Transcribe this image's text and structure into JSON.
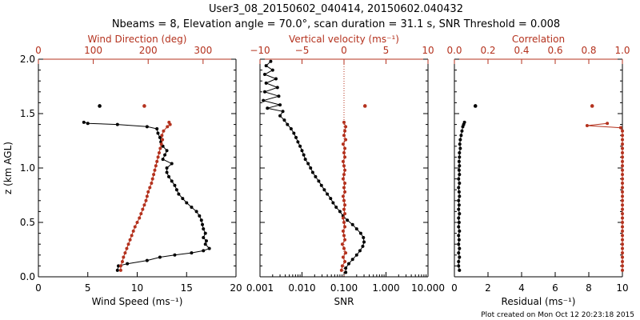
{
  "title_line1": "User3_08_20150602_040414, 20150602.040432",
  "title_line2": "Nbeams = 8, Elevation angle = 70.0°, scan duration = 31.1 s, SNR Threshold = 0.008",
  "footer": "Plot created on Mon Oct 12 20:23:18 2015",
  "colors": {
    "primary": "#000000",
    "secondary": "#b4321e"
  },
  "chart_data": [
    {
      "type": "line",
      "ylabel": "z (km AGL)",
      "ylim": [
        0,
        2
      ],
      "yticks": [
        "0.0",
        "0.5",
        "1.0",
        "1.5",
        "2.0"
      ],
      "bottom_axis": {
        "label": "Wind Speed (ms⁻¹)",
        "range": [
          0,
          20
        ],
        "ticks": [
          "0",
          "5",
          "10",
          "15",
          "20"
        ]
      },
      "top_axis": {
        "label": "Wind Direction (deg)",
        "range": [
          0,
          360
        ],
        "ticks": [
          "0",
          "100",
          "200",
          "300"
        ]
      },
      "series": [
        {
          "color": "#000000",
          "axis": "bottom",
          "points": [
            [
              8.0,
              0.06
            ],
            [
              8.1,
              0.1
            ],
            [
              9.0,
              0.12
            ],
            [
              11.0,
              0.15
            ],
            [
              12.3,
              0.18
            ],
            [
              13.8,
              0.2
            ],
            [
              15.5,
              0.22
            ],
            [
              16.7,
              0.24
            ],
            [
              17.3,
              0.26
            ],
            [
              16.9,
              0.3
            ],
            [
              17.0,
              0.33
            ],
            [
              16.7,
              0.36
            ],
            [
              16.9,
              0.4
            ],
            [
              16.7,
              0.44
            ],
            [
              16.6,
              0.48
            ],
            [
              16.5,
              0.52
            ],
            [
              16.3,
              0.56
            ],
            [
              16.0,
              0.6
            ],
            [
              15.5,
              0.64
            ],
            [
              15.0,
              0.68
            ],
            [
              14.6,
              0.72
            ],
            [
              14.2,
              0.76
            ],
            [
              14.0,
              0.8
            ],
            [
              13.8,
              0.84
            ],
            [
              13.5,
              0.88
            ],
            [
              13.2,
              0.92
            ],
            [
              13.0,
              0.96
            ],
            [
              13.0,
              1.0
            ],
            [
              13.5,
              1.04
            ],
            [
              12.6,
              1.08
            ],
            [
              12.8,
              1.12
            ],
            [
              13.0,
              1.16
            ],
            [
              12.6,
              1.2
            ],
            [
              12.4,
              1.24
            ],
            [
              12.3,
              1.28
            ],
            [
              12.1,
              1.32
            ],
            [
              12.0,
              1.36
            ],
            [
              11.0,
              1.38
            ],
            [
              8.0,
              1.4
            ],
            [
              5.0,
              1.41
            ],
            [
              4.6,
              1.42
            ]
          ],
          "isolated": [
            [
              6.2,
              1.57
            ]
          ]
        },
        {
          "color": "#b4321e",
          "axis": "top",
          "points": [
            [
              150,
              0.06
            ],
            [
              150,
              0.1
            ],
            [
              153,
              0.14
            ],
            [
              155,
              0.18
            ],
            [
              158,
              0.22
            ],
            [
              161,
              0.26
            ],
            [
              164,
              0.3
            ],
            [
              167,
              0.34
            ],
            [
              170,
              0.38
            ],
            [
              173,
              0.42
            ],
            [
              176,
              0.46
            ],
            [
              180,
              0.5
            ],
            [
              184,
              0.54
            ],
            [
              187,
              0.58
            ],
            [
              190,
              0.62
            ],
            [
              193,
              0.66
            ],
            [
              196,
              0.7
            ],
            [
              198,
              0.74
            ],
            [
              200,
              0.78
            ],
            [
              203,
              0.82
            ],
            [
              206,
              0.86
            ],
            [
              208,
              0.9
            ],
            [
              210,
              0.94
            ],
            [
              212,
              0.98
            ],
            [
              214,
              1.02
            ],
            [
              216,
              1.06
            ],
            [
              218,
              1.1
            ],
            [
              220,
              1.14
            ],
            [
              222,
              1.18
            ],
            [
              224,
              1.22
            ],
            [
              226,
              1.26
            ],
            [
              225,
              1.3
            ],
            [
              228,
              1.34
            ],
            [
              235,
              1.38
            ],
            [
              240,
              1.4
            ],
            [
              238,
              1.42
            ]
          ],
          "isolated": [
            [
              193,
              1.57
            ]
          ]
        }
      ]
    },
    {
      "type": "line",
      "ylim": [
        0,
        2
      ],
      "bottom_axis": {
        "label": "SNR",
        "scale": "log",
        "range": [
          0.001,
          10
        ],
        "ticks": [
          "0.001",
          "0.010",
          "0.100",
          "1.000",
          "10.000"
        ]
      },
      "top_axis": {
        "label": "Vertical velocity (ms⁻¹)",
        "range": [
          -10,
          10
        ],
        "ticks": [
          "−10",
          "−5",
          "0",
          "5",
          "10"
        ]
      },
      "reference_line": {
        "axis": "top",
        "value": 0,
        "style": "dotted"
      },
      "series": [
        {
          "color": "#000000",
          "axis": "bottom",
          "points": [
            [
              0.11,
              0.04
            ],
            [
              0.11,
              0.08
            ],
            [
              0.13,
              0.12
            ],
            [
              0.16,
              0.16
            ],
            [
              0.2,
              0.2
            ],
            [
              0.24,
              0.24
            ],
            [
              0.28,
              0.28
            ],
            [
              0.3,
              0.32
            ],
            [
              0.29,
              0.36
            ],
            [
              0.25,
              0.4
            ],
            [
              0.2,
              0.44
            ],
            [
              0.16,
              0.48
            ],
            [
              0.12,
              0.52
            ],
            [
              0.095,
              0.56
            ],
            [
              0.08,
              0.6
            ],
            [
              0.065,
              0.64
            ],
            [
              0.055,
              0.68
            ],
            [
              0.048,
              0.72
            ],
            [
              0.04,
              0.76
            ],
            [
              0.034,
              0.8
            ],
            [
              0.029,
              0.84
            ],
            [
              0.025,
              0.88
            ],
            [
              0.021,
              0.92
            ],
            [
              0.018,
              0.96
            ],
            [
              0.016,
              1.0
            ],
            [
              0.014,
              1.04
            ],
            [
              0.012,
              1.08
            ],
            [
              0.011,
              1.12
            ],
            [
              0.01,
              1.16
            ],
            [
              0.009,
              1.2
            ],
            [
              0.008,
              1.24
            ],
            [
              0.0072,
              1.28
            ],
            [
              0.0064,
              1.32
            ],
            [
              0.0055,
              1.36
            ],
            [
              0.0045,
              1.4
            ],
            [
              0.0038,
              1.44
            ],
            [
              0.003,
              1.48
            ],
            [
              0.0035,
              1.52
            ],
            [
              0.0015,
              1.55
            ],
            [
              0.003,
              1.58
            ],
            [
              0.0012,
              1.62
            ],
            [
              0.0028,
              1.66
            ],
            [
              0.0013,
              1.7
            ],
            [
              0.0026,
              1.74
            ],
            [
              0.0014,
              1.78
            ],
            [
              0.0024,
              1.82
            ],
            [
              0.0013,
              1.86
            ],
            [
              0.002,
              1.9
            ],
            [
              0.0014,
              1.94
            ],
            [
              0.0018,
              1.98
            ]
          ]
        },
        {
          "color": "#b4321e",
          "axis": "top",
          "points": [
            [
              -0.3,
              0.06
            ],
            [
              -0.2,
              0.1
            ],
            [
              0.1,
              0.14
            ],
            [
              -0.1,
              0.18
            ],
            [
              0.2,
              0.22
            ],
            [
              0.0,
              0.26
            ],
            [
              -0.2,
              0.3
            ],
            [
              0.1,
              0.34
            ],
            [
              0.0,
              0.38
            ],
            [
              -0.1,
              0.42
            ],
            [
              0.1,
              0.46
            ],
            [
              0.0,
              0.5
            ],
            [
              -0.1,
              0.54
            ],
            [
              0.1,
              0.58
            ],
            [
              0.0,
              0.62
            ],
            [
              0.1,
              0.66
            ],
            [
              0.0,
              0.7
            ],
            [
              -0.1,
              0.74
            ],
            [
              0.1,
              0.78
            ],
            [
              0.0,
              0.82
            ],
            [
              0.1,
              0.86
            ],
            [
              -0.1,
              0.9
            ],
            [
              0.0,
              0.94
            ],
            [
              0.1,
              0.98
            ],
            [
              0.0,
              1.02
            ],
            [
              -0.1,
              1.06
            ],
            [
              0.1,
              1.1
            ],
            [
              0.0,
              1.14
            ],
            [
              0.1,
              1.18
            ],
            [
              -0.1,
              1.22
            ],
            [
              0.2,
              1.26
            ],
            [
              0.0,
              1.3
            ],
            [
              0.1,
              1.34
            ],
            [
              0.2,
              1.38
            ],
            [
              0.0,
              1.42
            ]
          ],
          "isolated": [
            [
              2.5,
              1.57
            ]
          ]
        }
      ]
    },
    {
      "type": "line",
      "ylim": [
        0,
        2
      ],
      "bottom_axis": {
        "label": "Residual (ms⁻¹)",
        "range": [
          0,
          10
        ],
        "ticks": [
          "0",
          "2",
          "4",
          "6",
          "8",
          "10"
        ]
      },
      "top_axis": {
        "label": "Correlation",
        "range": [
          0,
          1
        ],
        "ticks": [
          "0.0",
          "0.2",
          "0.4",
          "0.6",
          "0.8",
          "1.0"
        ]
      },
      "series": [
        {
          "color": "#000000",
          "axis": "bottom",
          "points": [
            [
              0.3,
              0.06
            ],
            [
              0.25,
              0.1
            ],
            [
              0.25,
              0.14
            ],
            [
              0.3,
              0.18
            ],
            [
              0.25,
              0.22
            ],
            [
              0.3,
              0.26
            ],
            [
              0.25,
              0.3
            ],
            [
              0.28,
              0.34
            ],
            [
              0.25,
              0.38
            ],
            [
              0.3,
              0.42
            ],
            [
              0.25,
              0.46
            ],
            [
              0.28,
              0.5
            ],
            [
              0.25,
              0.54
            ],
            [
              0.3,
              0.58
            ],
            [
              0.25,
              0.62
            ],
            [
              0.28,
              0.66
            ],
            [
              0.25,
              0.7
            ],
            [
              0.3,
              0.74
            ],
            [
              0.28,
              0.78
            ],
            [
              0.25,
              0.82
            ],
            [
              0.3,
              0.86
            ],
            [
              0.25,
              0.9
            ],
            [
              0.3,
              0.94
            ],
            [
              0.28,
              0.98
            ],
            [
              0.3,
              1.02
            ],
            [
              0.28,
              1.06
            ],
            [
              0.3,
              1.1
            ],
            [
              0.3,
              1.14
            ],
            [
              0.35,
              1.18
            ],
            [
              0.32,
              1.22
            ],
            [
              0.35,
              1.26
            ],
            [
              0.4,
              1.3
            ],
            [
              0.45,
              1.34
            ],
            [
              0.5,
              1.38
            ],
            [
              0.55,
              1.4
            ],
            [
              0.6,
              1.42
            ]
          ],
          "isolated": [
            [
              1.25,
              1.57
            ]
          ]
        },
        {
          "color": "#b4321e",
          "axis": "top",
          "points": [
            [
              1.0,
              0.06
            ],
            [
              1.0,
              0.1
            ],
            [
              1.0,
              0.14
            ],
            [
              1.0,
              0.18
            ],
            [
              1.0,
              0.22
            ],
            [
              1.0,
              0.26
            ],
            [
              1.0,
              0.3
            ],
            [
              1.0,
              0.34
            ],
            [
              1.0,
              0.38
            ],
            [
              1.0,
              0.42
            ],
            [
              1.0,
              0.46
            ],
            [
              1.0,
              0.5
            ],
            [
              1.0,
              0.54
            ],
            [
              1.0,
              0.58
            ],
            [
              1.0,
              0.62
            ],
            [
              1.0,
              0.66
            ],
            [
              1.0,
              0.7
            ],
            [
              1.0,
              0.74
            ],
            [
              1.0,
              0.78
            ],
            [
              1.0,
              0.82
            ],
            [
              1.0,
              0.86
            ],
            [
              1.0,
              0.9
            ],
            [
              1.0,
              0.94
            ],
            [
              1.0,
              0.98
            ],
            [
              1.0,
              1.02
            ],
            [
              1.0,
              1.06
            ],
            [
              1.0,
              1.1
            ],
            [
              1.0,
              1.14
            ],
            [
              1.0,
              1.18
            ],
            [
              1.0,
              1.22
            ],
            [
              1.0,
              1.26
            ],
            [
              1.0,
              1.3
            ],
            [
              1.0,
              1.34
            ],
            [
              0.99,
              1.37
            ],
            [
              0.79,
              1.39
            ],
            [
              0.91,
              1.41
            ]
          ],
          "isolated": [
            [
              0.82,
              1.57
            ]
          ]
        }
      ]
    }
  ]
}
